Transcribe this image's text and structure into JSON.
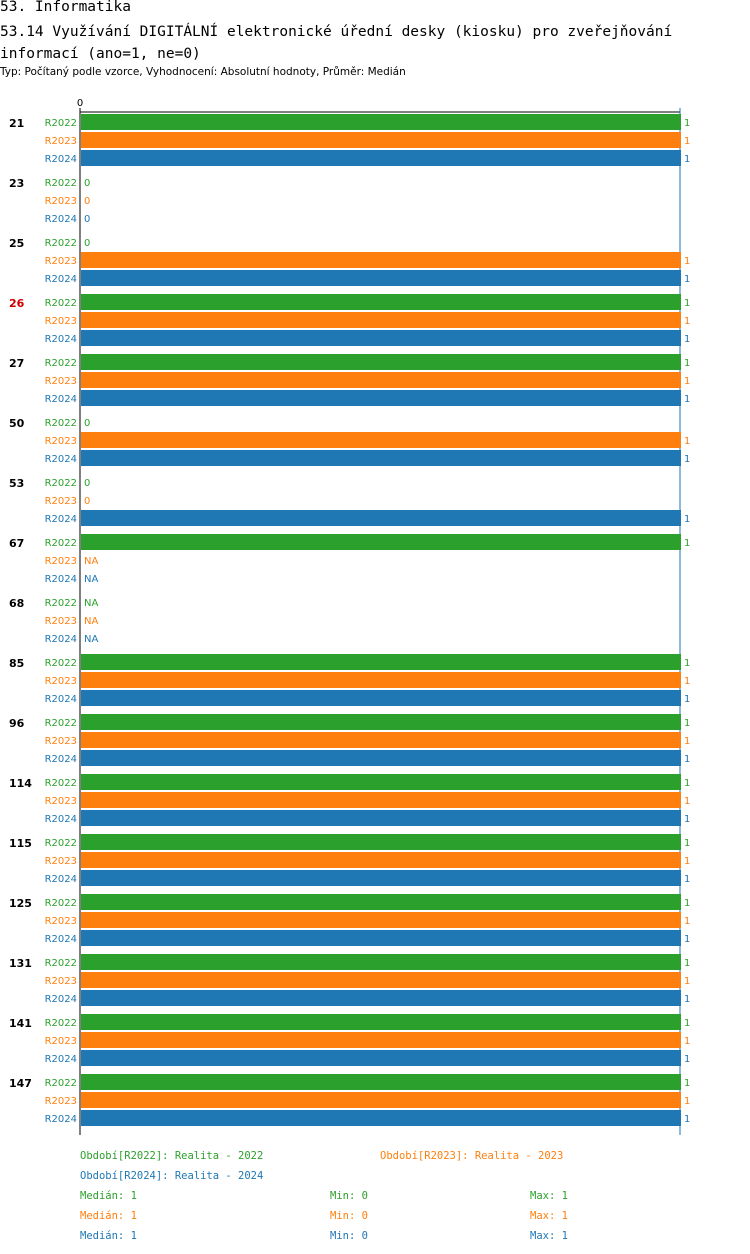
{
  "page": {
    "title": "53. Informatika",
    "chart_title": "53.14 Využívání DIGITÁLNÍ elektronické úřední desky (kiosku) pro zveřejňování informací (ano=1, ne=0)",
    "subtitle": "Typ: Počítaný podle vzorce, Vyhodnocení: Absolutní hodnoty, Průměr: Medián"
  },
  "colors": {
    "R2022": "#2ca02c",
    "R2023": "#ff7f0e",
    "R2024": "#1f77b4",
    "highlight": "#cc0000",
    "axis": "#1f77b4"
  },
  "chart_data": {
    "type": "bar",
    "orientation": "horizontal",
    "xlim": [
      0,
      1
    ],
    "axis_tick_label": "0",
    "highlight_category": "26",
    "categories": [
      "21",
      "23",
      "25",
      "26",
      "27",
      "50",
      "53",
      "67",
      "68",
      "85",
      "96",
      "114",
      "115",
      "125",
      "131",
      "141",
      "147"
    ],
    "series": [
      {
        "name": "R2022",
        "values": [
          1,
          0,
          0,
          1,
          1,
          0,
          0,
          1,
          null,
          1,
          1,
          1,
          1,
          1,
          1,
          1,
          1
        ]
      },
      {
        "name": "R2023",
        "values": [
          1,
          0,
          1,
          1,
          1,
          1,
          0,
          null,
          null,
          1,
          1,
          1,
          1,
          1,
          1,
          1,
          1
        ]
      },
      {
        "name": "R2024",
        "values": [
          1,
          0,
          1,
          1,
          1,
          1,
          1,
          null,
          null,
          1,
          1,
          1,
          1,
          1,
          1,
          1,
          1
        ]
      }
    ],
    "na_label": "NA"
  },
  "legend": [
    {
      "text": "Období[R2022]: Realita - 2022",
      "series": "R2022"
    },
    {
      "text": "Období[R2023]: Realita - 2023",
      "series": "R2023"
    },
    {
      "text": "Období[R2024]: Realita - 2024",
      "series": "R2024"
    }
  ],
  "stats": [
    {
      "series": "R2022",
      "median": "Medián: 1",
      "min": "Min: 0",
      "max": "Max: 1"
    },
    {
      "series": "R2023",
      "median": "Medián: 1",
      "min": "Min: 0",
      "max": "Max: 1"
    },
    {
      "series": "R2024",
      "median": "Medián: 1",
      "min": "Min: 0",
      "max": "Max: 1"
    }
  ]
}
